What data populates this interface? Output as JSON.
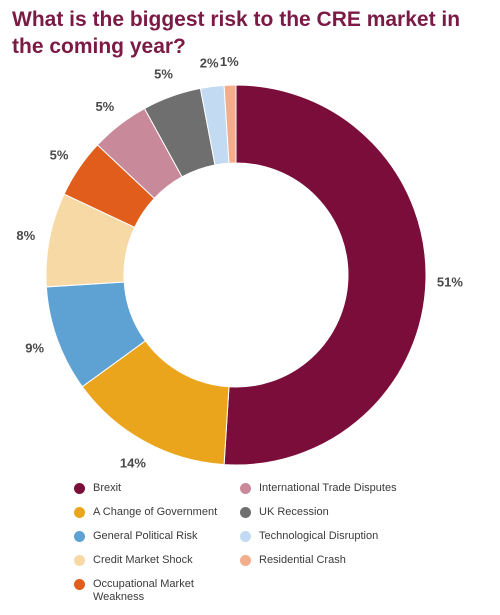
{
  "chart_data": {
    "type": "pie",
    "title": "What is the biggest risk to the CRE market in the coming year?",
    "unit": "%",
    "slices": [
      {
        "label": "Brexit",
        "value": 51,
        "value_label": "51%",
        "color": "#7b0d3b"
      },
      {
        "label": "A Change of Government",
        "value": 14,
        "value_label": "14%",
        "color": "#eba51c"
      },
      {
        "label": "General Political Risk",
        "value": 9,
        "value_label": "9%",
        "color": "#5ea2d4"
      },
      {
        "label": "Credit Market Shock",
        "value": 8,
        "value_label": "8%",
        "color": "#f7d9a6"
      },
      {
        "label": "Occupational Market Weakness",
        "value": 5,
        "value_label": "5%",
        "color": "#e15d1c"
      },
      {
        "label": "International Trade Disputes",
        "value": 5,
        "value_label": "5%",
        "color": "#c88a9b"
      },
      {
        "label": "UK Recession",
        "value": 5,
        "value_label": "5%",
        "color": "#6f6f6f"
      },
      {
        "label": "Technological Disruption",
        "value": 2,
        "value_label": "2%",
        "color": "#c2dbf2"
      },
      {
        "label": "Residential Crash",
        "value": 1,
        "value_label": "1%",
        "color": "#f2ad8c"
      }
    ],
    "hole": "donut",
    "start": "top",
    "direction": "clockwise",
    "legend_position": "bottom"
  }
}
